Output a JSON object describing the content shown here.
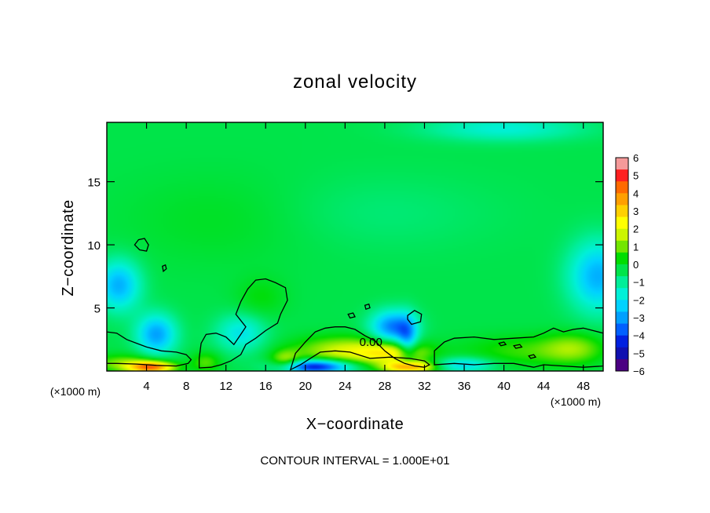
{
  "chart_data": {
    "type": "heatmap",
    "title": "zonal velocity",
    "xlabel": "X−coordinate",
    "ylabel": "Z−coordinate",
    "x_unit_left": "(×1000 m)",
    "x_unit_right": "(×1000 m)",
    "x_ticks": [
      4,
      8,
      12,
      16,
      20,
      24,
      28,
      32,
      36,
      40,
      44,
      48
    ],
    "y_ticks": [
      5,
      10,
      15
    ],
    "xlim": [
      0,
      50
    ],
    "ylim": [
      0,
      19.7
    ],
    "colorbar": {
      "labels": [
        "6",
        "5",
        "4",
        "3",
        "2",
        "1",
        "0",
        "−1",
        "−2",
        "−3",
        "−4",
        "−5",
        "−6"
      ],
      "range": [
        -6,
        6
      ],
      "colors": [
        "#f59a9a",
        "#ff2020",
        "#ff6a00",
        "#ff9f00",
        "#ffd000",
        "#ffff00",
        "#ccf500",
        "#73e600",
        "#00dd00",
        "#00e44a",
        "#00ee99",
        "#00f0d8",
        "#00d2ff",
        "#00a0ff",
        "#0060ff",
        "#0020e0",
        "#1010b0",
        "#4b0082"
      ]
    },
    "contour_label": "0.00",
    "contour_label_x": 26.6,
    "contour_label_z": 2.3,
    "footnote": "CONTOUR INTERVAL = 1.000E+01",
    "field_features": [
      {
        "x": 1.2,
        "z": 6.8,
        "rx": 2.2,
        "rz": 2.0,
        "value": -2.6
      },
      {
        "x": 49.5,
        "z": 7.5,
        "rx": 3.0,
        "rz": 2.8,
        "value": -2.6
      },
      {
        "x": 5.0,
        "z": 2.9,
        "rx": 2.0,
        "rz": 1.6,
        "value": -2.8
      },
      {
        "x": 28.8,
        "z": 3.5,
        "rx": 2.2,
        "rz": 1.3,
        "value": -3.2
      },
      {
        "x": 30.3,
        "z": 2.4,
        "rx": 1.0,
        "rz": 1.8,
        "value": -2.2
      },
      {
        "x": 13.5,
        "z": 3.0,
        "rx": 2.5,
        "rz": 1.5,
        "value": -1.7
      },
      {
        "x": 24.0,
        "z": 1.6,
        "rx": 5.0,
        "rz": 1.1,
        "value": 2.2
      },
      {
        "x": 29.0,
        "z": 1.4,
        "rx": 3.5,
        "rz": 0.9,
        "value": 2.4
      },
      {
        "x": 2.0,
        "z": 0.6,
        "rx": 3.5,
        "rz": 0.7,
        "value": 1.6
      },
      {
        "x": 4.5,
        "z": 0.3,
        "rx": 2.2,
        "rz": 0.45,
        "value": 4.5
      },
      {
        "x": 30.5,
        "z": 0.3,
        "rx": 2.5,
        "rz": 0.45,
        "value": 4.0
      },
      {
        "x": 21.0,
        "z": 0.35,
        "rx": 3.5,
        "rz": 0.55,
        "value": -4.6
      },
      {
        "x": 36.0,
        "z": 0.5,
        "rx": 3.0,
        "rz": 0.6,
        "value": -2.0
      },
      {
        "x": 42.0,
        "z": 1.6,
        "rx": 6.0,
        "rz": 1.2,
        "value": 1.0
      },
      {
        "x": 47.0,
        "z": 1.8,
        "rx": 3.0,
        "rz": 1.2,
        "value": 1.4
      },
      {
        "x": 15.5,
        "z": 5.8,
        "rx": 2.5,
        "rz": 1.6,
        "value": 0.6
      },
      {
        "x": 18.0,
        "z": 0.8,
        "rx": 1.5,
        "rz": 0.8,
        "value": 1.8
      },
      {
        "x": 10.0,
        "z": 0.7,
        "rx": 1.5,
        "rz": 0.8,
        "value": 1.2
      },
      {
        "x": 40.0,
        "z": 19.2,
        "rx": 8.0,
        "rz": 1.0,
        "value": -1.4
      },
      {
        "x": 12.0,
        "z": 12.0,
        "rx": 10.0,
        "rz": 3.5,
        "value": 0.4
      },
      {
        "x": 27.0,
        "z": 12.5,
        "rx": 12.0,
        "rz": 3.0,
        "value": -0.4
      }
    ],
    "contours": [
      [
        [
          0,
          3.1
        ],
        [
          1,
          3.0
        ],
        [
          2,
          2.5
        ],
        [
          3,
          2.2
        ],
        [
          4,
          1.9
        ],
        [
          5.5,
          1.6
        ],
        [
          7,
          1.5
        ],
        [
          8,
          1.3
        ],
        [
          8.5,
          0.9
        ],
        [
          8.2,
          0.6
        ],
        [
          7,
          0.4
        ],
        [
          5,
          0.45
        ],
        [
          3,
          0.55
        ],
        [
          1,
          0.6
        ],
        [
          0,
          0.6
        ]
      ],
      [
        [
          9.3,
          0.25
        ],
        [
          9.3,
          1.0
        ],
        [
          9.5,
          2.2
        ],
        [
          10,
          2.9
        ],
        [
          11,
          3.0
        ],
        [
          12,
          2.7
        ],
        [
          12.8,
          2.1
        ],
        [
          13.5,
          2.9
        ],
        [
          14,
          3.5
        ],
        [
          13,
          4.5
        ],
        [
          13.5,
          5.5
        ],
        [
          14.2,
          6.5
        ],
        [
          15,
          7.2
        ],
        [
          16,
          7.3
        ],
        [
          17,
          7.0
        ],
        [
          18,
          6.6
        ],
        [
          18.2,
          5.6
        ],
        [
          17.5,
          4.5
        ],
        [
          17.2,
          3.8
        ],
        [
          16,
          3.2
        ],
        [
          15,
          2.6
        ],
        [
          14,
          2.1
        ],
        [
          13.5,
          1.3
        ],
        [
          12.5,
          0.8
        ],
        [
          11.5,
          0.5
        ],
        [
          10.5,
          0.3
        ],
        [
          9.3,
          0.25
        ]
      ],
      [
        [
          18.5,
          0.1
        ],
        [
          19,
          1.4
        ],
        [
          20,
          2.3
        ],
        [
          21,
          3.1
        ],
        [
          22,
          3.4
        ],
        [
          23,
          3.5
        ],
        [
          24,
          3.5
        ],
        [
          25,
          3.3
        ],
        [
          26,
          2.8
        ],
        [
          27,
          2.4
        ],
        [
          27.5,
          2.0
        ],
        [
          28,
          1.6
        ],
        [
          29,
          1.0
        ],
        [
          30,
          0.6
        ],
        [
          31,
          0.4
        ],
        [
          32,
          0.3
        ],
        [
          32.5,
          0.5
        ],
        [
          32,
          0.8
        ],
        [
          30.5,
          1.0
        ],
        [
          28.5,
          1.1
        ],
        [
          26.5,
          1.0
        ],
        [
          24.5,
          1.5
        ],
        [
          23,
          1.6
        ],
        [
          21.5,
          1.5
        ],
        [
          20.5,
          1.0
        ],
        [
          19.5,
          0.5
        ],
        [
          18.5,
          0.1
        ]
      ],
      [
        [
          33,
          0.5
        ],
        [
          33,
          1.6
        ],
        [
          34,
          2.3
        ],
        [
          35,
          2.6
        ],
        [
          37,
          2.7
        ],
        [
          39,
          2.5
        ],
        [
          41,
          2.6
        ],
        [
          43,
          2.7
        ],
        [
          44,
          3.0
        ],
        [
          45,
          3.4
        ],
        [
          46,
          3.1
        ],
        [
          47,
          3.3
        ],
        [
          48,
          3.4
        ],
        [
          49,
          3.2
        ],
        [
          50,
          3.0
        ],
        [
          50,
          0.4
        ],
        [
          48,
          0.3
        ],
        [
          46,
          0.4
        ],
        [
          44,
          0.5
        ],
        [
          43,
          0.3
        ],
        [
          41,
          0.6
        ],
        [
          39,
          0.6
        ],
        [
          37,
          0.5
        ],
        [
          35,
          0.6
        ],
        [
          33,
          0.5
        ]
      ],
      [
        [
          2.8,
          10.0
        ],
        [
          3.2,
          10.4
        ],
        [
          3.8,
          10.5
        ],
        [
          4.2,
          10.0
        ],
        [
          4.0,
          9.5
        ],
        [
          3.3,
          9.6
        ],
        [
          2.8,
          10.0
        ]
      ],
      [
        [
          5.6,
          8.3
        ],
        [
          5.9,
          8.4
        ],
        [
          6.0,
          8.1
        ],
        [
          5.7,
          7.9
        ],
        [
          5.6,
          8.3
        ]
      ],
      [
        [
          24.3,
          4.5
        ],
        [
          24.8,
          4.6
        ],
        [
          25.0,
          4.3
        ],
        [
          24.5,
          4.2
        ],
        [
          24.3,
          4.5
        ]
      ],
      [
        [
          26.0,
          5.2
        ],
        [
          26.4,
          5.3
        ],
        [
          26.5,
          5.0
        ],
        [
          26.1,
          4.9
        ],
        [
          26.0,
          5.2
        ]
      ],
      [
        [
          30.3,
          4.4
        ],
        [
          31.0,
          4.8
        ],
        [
          31.7,
          4.5
        ],
        [
          31.6,
          3.9
        ],
        [
          30.7,
          3.7
        ],
        [
          30.3,
          4.1
        ],
        [
          30.3,
          4.4
        ]
      ],
      [
        [
          39.5,
          2.2
        ],
        [
          40.0,
          2.3
        ],
        [
          40.2,
          2.1
        ],
        [
          39.7,
          2.0
        ],
        [
          39.5,
          2.2
        ]
      ],
      [
        [
          41.0,
          2.0
        ],
        [
          41.6,
          2.1
        ],
        [
          41.8,
          1.9
        ],
        [
          41.2,
          1.8
        ],
        [
          41.0,
          2.0
        ]
      ],
      [
        [
          42.5,
          1.2
        ],
        [
          43.0,
          1.3
        ],
        [
          43.2,
          1.1
        ],
        [
          42.7,
          1.0
        ],
        [
          42.5,
          1.2
        ]
      ]
    ]
  }
}
